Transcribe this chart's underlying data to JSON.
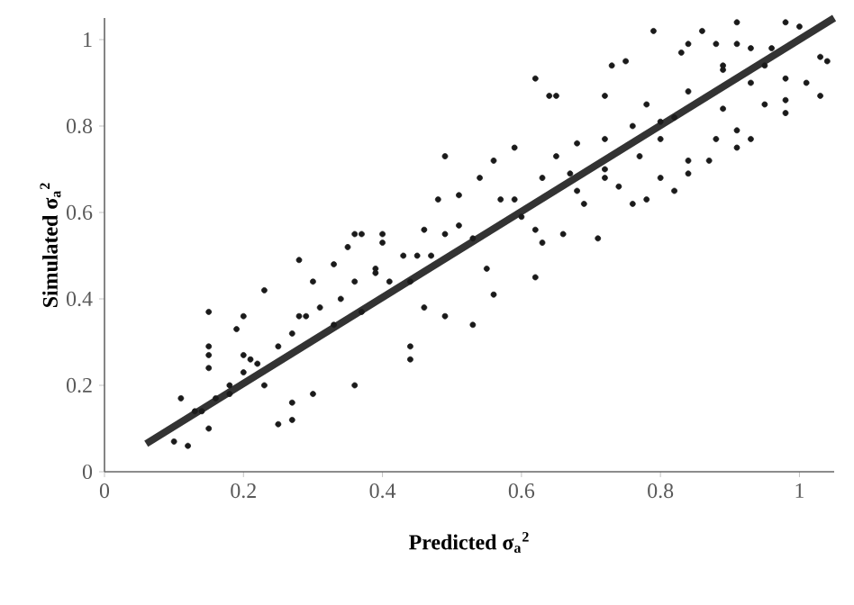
{
  "chart_data": {
    "type": "scatter",
    "xlabel": "**Predicted σ$_{a}$$^{2}$**",
    "ylabel": "**Simulated σ$_{a}$$^{2}$**",
    "xlim": [
      0,
      1.05
    ],
    "ylim": [
      0,
      1.05
    ],
    "xticks": [
      0,
      0.2,
      0.4,
      0.6,
      0.8,
      1
    ],
    "yticks": [
      0,
      0.2,
      0.4,
      0.6,
      0.8,
      1
    ],
    "grid": false,
    "legend": false,
    "series": [
      {
        "marker": "circle",
        "color": "#1a1a1a",
        "x": [
          0.15,
          0.15,
          0.15,
          0.15,
          0.15,
          0.12,
          0.1,
          0.11,
          0.14,
          0.2,
          0.19,
          0.2,
          0.23,
          0.25,
          0.27,
          0.27,
          0.28,
          0.3,
          0.3,
          0.33,
          0.36,
          0.36,
          0.35,
          0.37,
          0.4,
          0.4,
          0.39,
          0.33,
          0.37,
          0.28,
          0.23,
          0.21,
          0.18,
          0.44,
          0.44,
          0.48,
          0.51,
          0.49,
          0.46,
          0.45,
          0.46,
          0.44,
          0.49,
          0.53,
          0.53,
          0.54,
          0.56,
          0.56,
          0.55,
          0.6,
          0.59,
          0.62,
          0.62,
          0.62,
          0.63,
          0.64,
          0.66,
          0.65,
          0.67,
          0.68,
          0.69,
          0.71,
          0.72,
          0.72,
          0.72,
          0.74,
          0.73,
          0.75,
          0.76,
          0.76,
          0.78,
          0.78,
          0.79,
          0.8,
          0.8,
          0.82,
          0.82,
          0.83,
          0.84,
          0.84,
          0.86,
          0.84,
          0.87,
          0.88,
          0.89,
          0.88,
          0.89,
          0.91,
          0.91,
          0.91,
          0.93,
          0.93,
          0.95,
          0.95,
          0.98,
          0.98,
          0.96,
          0.98,
          1.0,
          1.01,
          1.03,
          1.03,
          1.04,
          0.98,
          0.91,
          0.13,
          0.16,
          0.18,
          0.2,
          0.22,
          0.25,
          0.27,
          0.29,
          0.31,
          0.34,
          0.36,
          0.39,
          0.41,
          0.43,
          0.47,
          0.49,
          0.51,
          0.57,
          0.59,
          0.63,
          0.65,
          0.68,
          0.72,
          0.77,
          0.8,
          0.84,
          0.89,
          0.93
        ],
        "values": [
          0.37,
          0.29,
          0.27,
          0.24,
          0.1,
          0.06,
          0.07,
          0.17,
          0.14,
          0.36,
          0.33,
          0.27,
          0.42,
          0.11,
          0.12,
          0.16,
          0.49,
          0.18,
          0.44,
          0.48,
          0.2,
          0.55,
          0.52,
          0.55,
          0.55,
          0.53,
          0.46,
          0.34,
          0.37,
          0.36,
          0.2,
          0.26,
          0.2,
          0.29,
          0.26,
          0.63,
          0.64,
          0.73,
          0.56,
          0.5,
          0.38,
          0.44,
          0.36,
          0.34,
          0.54,
          0.68,
          0.72,
          0.41,
          0.47,
          0.59,
          0.75,
          0.91,
          0.45,
          0.56,
          0.53,
          0.87,
          0.55,
          0.87,
          0.69,
          0.76,
          0.62,
          0.54,
          0.87,
          0.7,
          0.68,
          0.66,
          0.94,
          0.95,
          0.62,
          0.8,
          0.63,
          0.85,
          1.02,
          0.77,
          0.68,
          0.65,
          0.82,
          0.97,
          0.69,
          0.72,
          1.02,
          0.99,
          0.72,
          0.77,
          0.94,
          0.99,
          0.84,
          0.79,
          0.75,
          1.04,
          0.77,
          0.9,
          0.85,
          0.94,
          1.04,
          0.83,
          0.98,
          0.91,
          1.03,
          0.9,
          0.87,
          0.96,
          0.95,
          0.86,
          0.99,
          0.14,
          0.17,
          0.18,
          0.23,
          0.25,
          0.29,
          0.32,
          0.36,
          0.38,
          0.4,
          0.44,
          0.47,
          0.44,
          0.5,
          0.5,
          0.55,
          0.57,
          0.63,
          0.63,
          0.68,
          0.73,
          0.65,
          0.77,
          0.73,
          0.81,
          0.88,
          0.93,
          0.98
        ]
      },
      {
        "type": "line",
        "marker": "none",
        "line_style": "solid",
        "color": "#333333",
        "x": [
          0.06,
          1.05
        ],
        "values": [
          0.065,
          1.05
        ]
      }
    ]
  }
}
